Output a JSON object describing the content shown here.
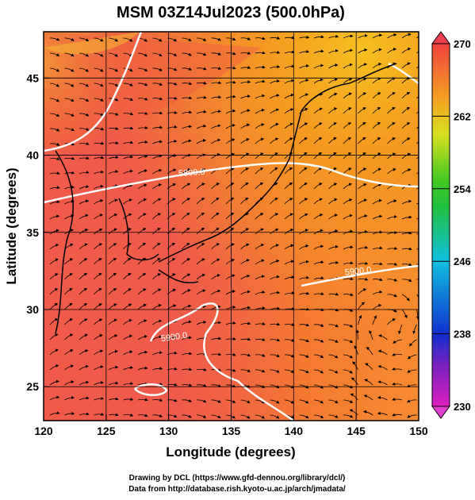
{
  "chart_data": {
    "type": "map",
    "title": "MSM 03Z14Jul2023 (500.0hPa)",
    "xlabel": "Longitude (degrees)",
    "ylabel": "Latitude  (degrees)",
    "xlim": [
      120,
      150
    ],
    "xticks": [
      120,
      125,
      130,
      135,
      140,
      145,
      150
    ],
    "ylim": [
      22.8,
      48
    ],
    "yticks": [
      25,
      30,
      35,
      40,
      45
    ],
    "grid": true,
    "colorbar": {
      "lim": [
        230,
        270
      ],
      "ticks": [
        230,
        238,
        246,
        254,
        262,
        270
      ]
    },
    "contour_labels": [
      "5800.0",
      "5900.0",
      "5900.0"
    ],
    "footer": [
      "Drawing by DCL (https://www.gfd-dennou.org/library/dcl/)",
      "Data from http://database.rish.kyoto-u.ac.jp/arch/jmadata/"
    ]
  }
}
